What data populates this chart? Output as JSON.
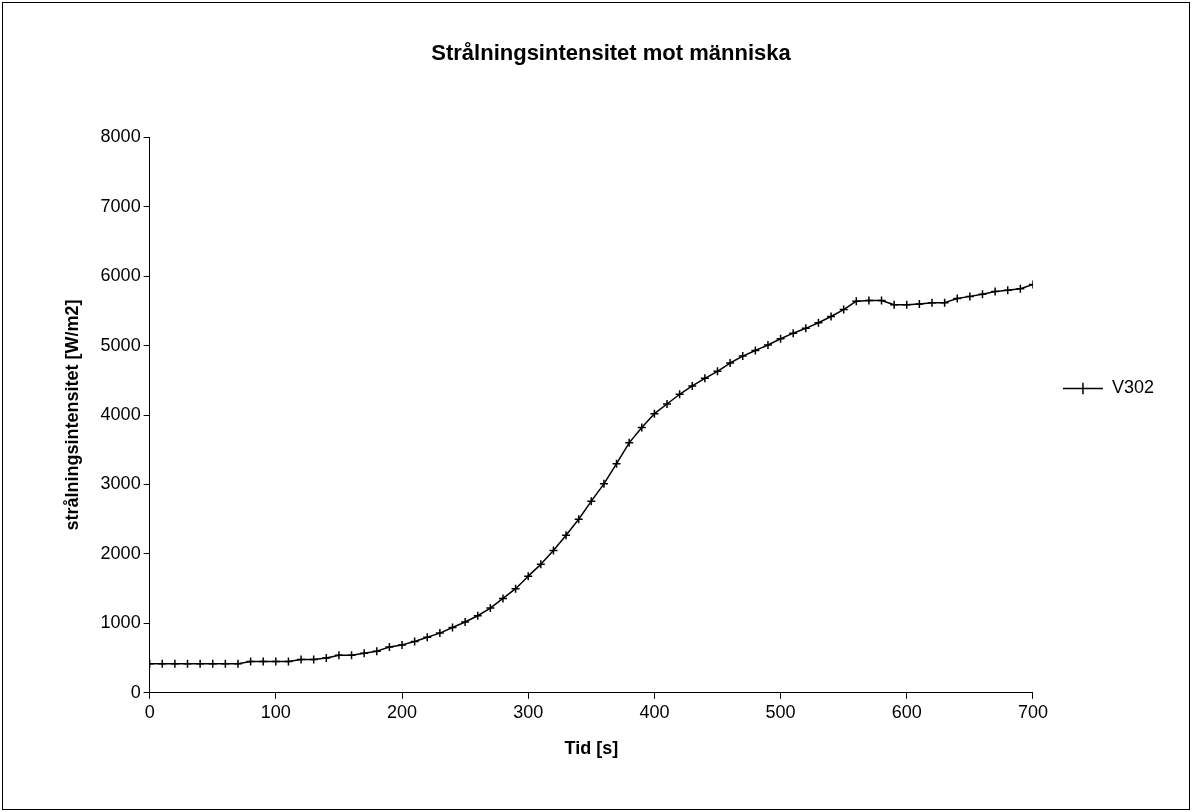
{
  "chart_data": {
    "type": "line",
    "title": "Strålningsintensitet mot människa",
    "xlabel": "Tid [s]",
    "ylabel": "strålningsintensitet [W/m2]",
    "x": [
      0,
      10,
      20,
      30,
      40,
      50,
      60,
      70,
      80,
      90,
      100,
      110,
      120,
      130,
      140,
      150,
      160,
      170,
      180,
      190,
      200,
      210,
      220,
      230,
      240,
      250,
      260,
      270,
      280,
      290,
      300,
      310,
      320,
      330,
      340,
      350,
      360,
      370,
      380,
      390,
      400,
      410,
      420,
      430,
      440,
      450,
      460,
      470,
      480,
      490,
      500,
      510,
      520,
      530,
      540,
      550,
      560,
      570,
      580,
      590,
      600,
      610,
      620,
      630,
      640,
      650,
      660,
      670,
      680,
      690,
      700
    ],
    "series": [
      {
        "name": "V302",
        "color": "#000000",
        "values": [
          420,
          420,
          420,
          420,
          420,
          420,
          420,
          420,
          450,
          450,
          450,
          450,
          480,
          480,
          500,
          540,
          540,
          570,
          600,
          660,
          690,
          740,
          800,
          860,
          940,
          1020,
          1110,
          1220,
          1360,
          1500,
          1680,
          1850,
          2050,
          2270,
          2500,
          2760,
          3010,
          3300,
          3600,
          3820,
          4020,
          4160,
          4300,
          4420,
          4530,
          4630,
          4750,
          4850,
          4930,
          5010,
          5100,
          5180,
          5250,
          5330,
          5420,
          5520,
          5640,
          5650,
          5650,
          5590,
          5590,
          5600,
          5620,
          5620,
          5680,
          5710,
          5740,
          5780,
          5800,
          5820,
          5880
        ]
      }
    ],
    "xlim": [
      0,
      700
    ],
    "xticks": [
      0,
      100,
      200,
      300,
      400,
      500,
      600,
      700
    ],
    "ylim": [
      0,
      8000
    ],
    "yticks": [
      0,
      1000,
      2000,
      3000,
      4000,
      5000,
      6000,
      7000,
      8000
    ],
    "grid": false,
    "legend": "right",
    "marker": "cross",
    "line_style": "solid"
  }
}
